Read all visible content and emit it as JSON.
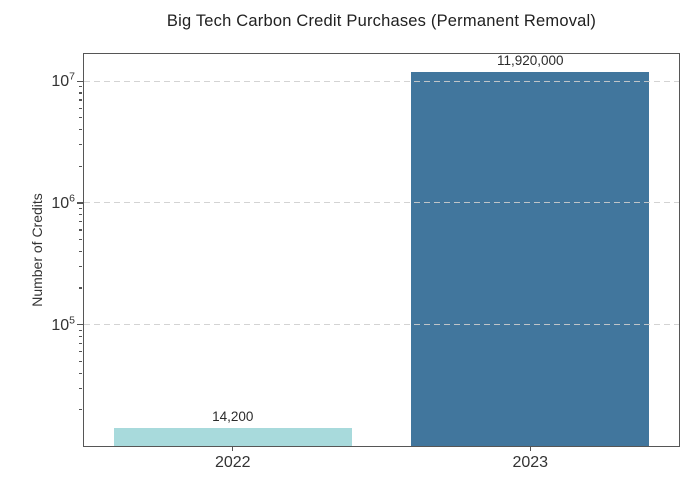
{
  "chart_data": {
    "type": "bar",
    "title": "Big Tech Carbon Credit Purchases (Permanent Removal)",
    "xlabel": "",
    "ylabel": "Number of Credits",
    "categories": [
      "2022",
      "2023"
    ],
    "values": [
      14200,
      11920000
    ],
    "value_labels": [
      "14,200",
      "11,920,000"
    ],
    "bar_colors": [
      "#a8dadc",
      "#41769d"
    ],
    "yscale": "log",
    "ylim": [
      10100,
      16700000
    ],
    "ytick_exponents": [
      5,
      6,
      7
    ],
    "bar_width_fraction": 0.4,
    "grid": {
      "axis": "y",
      "which": "major",
      "style": "dashed"
    },
    "legend_position": "none"
  },
  "style": {
    "grid_color": "rgba(206,206,206,0.9)",
    "spine_color": "#565656",
    "tick_color": "#555555",
    "text_color": "#333333",
    "background": "#ffffff"
  }
}
